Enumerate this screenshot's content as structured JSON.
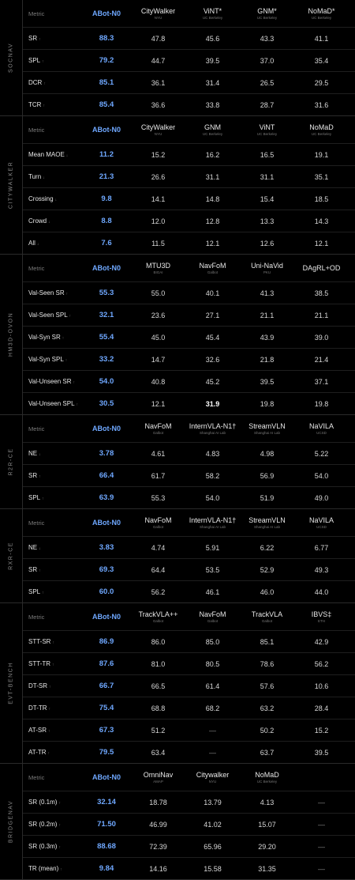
{
  "chart_data": [
    {
      "type": "table",
      "section": "SOCNAV",
      "header_label": "Metric",
      "ours": "ABot-N0",
      "baselines": [
        {
          "name": "CityWalker",
          "org": "NYU"
        },
        {
          "name": "ViNT*",
          "org": "UC Berkeley"
        },
        {
          "name": "GNM*",
          "org": "UC Berkeley"
        },
        {
          "name": "NoMaD*",
          "org": "UC Berkeley"
        }
      ],
      "rows": [
        {
          "metric": "SR",
          "arrow": "↑",
          "values": [
            "88.3",
            "47.8",
            "45.6",
            "43.3",
            "41.1"
          ]
        },
        {
          "metric": "SPL",
          "arrow": "↑",
          "values": [
            "79.2",
            "44.7",
            "39.5",
            "37.0",
            "35.4"
          ]
        },
        {
          "metric": "DCR",
          "arrow": "↑",
          "values": [
            "85.1",
            "36.1",
            "31.4",
            "26.5",
            "29.5"
          ]
        },
        {
          "metric": "TCR",
          "arrow": "↑",
          "values": [
            "85.4",
            "36.6",
            "33.8",
            "28.7",
            "31.6"
          ]
        }
      ]
    },
    {
      "type": "table",
      "section": "CITYWALKER",
      "header_label": "Metric",
      "ours": "ABot-N0",
      "baselines": [
        {
          "name": "CityWalker",
          "org": "NYU"
        },
        {
          "name": "GNM",
          "org": "UC Berkeley"
        },
        {
          "name": "ViNT",
          "org": "UC Berkeley"
        },
        {
          "name": "NoMaD",
          "org": "UC Berkeley"
        }
      ],
      "rows": [
        {
          "metric": "Mean MAOE",
          "arrow": "↓",
          "values": [
            "11.2",
            "15.2",
            "16.2",
            "16.5",
            "19.1"
          ]
        },
        {
          "metric": "Turn",
          "arrow": "↓",
          "values": [
            "21.3",
            "26.6",
            "31.1",
            "31.1",
            "35.1"
          ]
        },
        {
          "metric": "Crossing",
          "arrow": "↓",
          "values": [
            "9.8",
            "14.1",
            "14.8",
            "15.4",
            "18.5"
          ]
        },
        {
          "metric": "Crowd",
          "arrow": "↓",
          "values": [
            "8.8",
            "12.0",
            "12.8",
            "13.3",
            "14.3"
          ]
        },
        {
          "metric": "All",
          "arrow": "↓",
          "values": [
            "7.6",
            "11.5",
            "12.1",
            "12.6",
            "12.1"
          ]
        }
      ]
    },
    {
      "type": "table",
      "section": "HM3D-OVON",
      "header_label": "Metric",
      "ours": "ABot-N0",
      "baselines": [
        {
          "name": "MTU3D",
          "org": "BIGAI"
        },
        {
          "name": "NavFoM",
          "org": "Galbot"
        },
        {
          "name": "Uni-NaVid",
          "org": "PKU"
        },
        {
          "name": "DAgRL+OD",
          "org": ""
        }
      ],
      "rows": [
        {
          "metric": "Val-Seen SR",
          "arrow": "↑",
          "values": [
            "55.3",
            "55.0",
            "40.1",
            "41.3",
            "38.5"
          ]
        },
        {
          "metric": "Val-Seen SPL",
          "arrow": "↑",
          "values": [
            "32.1",
            "23.6",
            "27.1",
            "21.1",
            "21.1"
          ]
        },
        {
          "metric": "Val-Syn SR",
          "arrow": "↑",
          "values": [
            "55.4",
            "45.0",
            "45.4",
            "43.9",
            "39.0"
          ]
        },
        {
          "metric": "Val-Syn SPL",
          "arrow": "↑",
          "values": [
            "33.2",
            "14.7",
            "32.6",
            "21.8",
            "21.4"
          ]
        },
        {
          "metric": "Val-Unseen SR",
          "arrow": "↑",
          "values": [
            "54.0",
            "40.8",
            "45.2",
            "39.5",
            "37.1"
          ]
        },
        {
          "metric": "Val-Unseen SPL",
          "arrow": "↑",
          "values": [
            "30.5",
            "12.1",
            "31.9",
            "19.8",
            "19.8"
          ],
          "bold_index": 2
        }
      ]
    },
    {
      "type": "table",
      "section": "R2R-CE",
      "header_label": "Metric",
      "ours": "ABot-N0",
      "baselines": [
        {
          "name": "NavFoM",
          "org": "Galbot"
        },
        {
          "name": "InternVLA-N1†",
          "org": "Shanghai AI Lab"
        },
        {
          "name": "StreamVLN",
          "org": "Shanghai AI Lab"
        },
        {
          "name": "NaVILA",
          "org": "UCSD"
        }
      ],
      "rows": [
        {
          "metric": "NE",
          "arrow": "↓",
          "values": [
            "3.78",
            "4.61",
            "4.83",
            "4.98",
            "5.22"
          ]
        },
        {
          "metric": "SR",
          "arrow": "↑",
          "values": [
            "66.4",
            "61.7",
            "58.2",
            "56.9",
            "54.0"
          ]
        },
        {
          "metric": "SPL",
          "arrow": "↑",
          "values": [
            "63.9",
            "55.3",
            "54.0",
            "51.9",
            "49.0"
          ]
        }
      ]
    },
    {
      "type": "table",
      "section": "RXR-CE",
      "header_label": "Metric",
      "ours": "ABot-N0",
      "baselines": [
        {
          "name": "NavFoM",
          "org": "Galbot"
        },
        {
          "name": "InternVLA-N1†",
          "org": "Shanghai AI Lab"
        },
        {
          "name": "StreamVLN",
          "org": "Shanghai AI Lab"
        },
        {
          "name": "NaVILA",
          "org": "UCSD"
        }
      ],
      "rows": [
        {
          "metric": "NE",
          "arrow": "↓",
          "values": [
            "3.83",
            "4.74",
            "5.91",
            "6.22",
            "6.77"
          ]
        },
        {
          "metric": "SR",
          "arrow": "↑",
          "values": [
            "69.3",
            "64.4",
            "53.5",
            "52.9",
            "49.3"
          ]
        },
        {
          "metric": "SPL",
          "arrow": "↑",
          "values": [
            "60.0",
            "56.2",
            "46.1",
            "46.0",
            "44.0"
          ]
        }
      ]
    },
    {
      "type": "table",
      "section": "EVT-BENCH",
      "header_label": "Metric",
      "ours": "ABot-N0",
      "baselines": [
        {
          "name": "TrackVLA++",
          "org": "Galbot"
        },
        {
          "name": "NavFoM",
          "org": "Galbot"
        },
        {
          "name": "TrackVLA",
          "org": "Galbot"
        },
        {
          "name": "IBVS‡",
          "org": "ETH"
        }
      ],
      "rows": [
        {
          "metric": "STT-SR",
          "arrow": "↑",
          "values": [
            "86.9",
            "86.0",
            "85.0",
            "85.1",
            "42.9"
          ]
        },
        {
          "metric": "STT-TR",
          "arrow": "↑",
          "values": [
            "87.6",
            "81.0",
            "80.5",
            "78.6",
            "56.2"
          ]
        },
        {
          "metric": "DT-SR",
          "arrow": "↑",
          "values": [
            "66.7",
            "66.5",
            "61.4",
            "57.6",
            "10.6"
          ]
        },
        {
          "metric": "DT-TR",
          "arrow": "↑",
          "values": [
            "75.4",
            "68.8",
            "68.2",
            "63.2",
            "28.4"
          ]
        },
        {
          "metric": "AT-SR",
          "arrow": "↑",
          "values": [
            "67.3",
            "51.2",
            "—",
            "50.2",
            "15.2"
          ]
        },
        {
          "metric": "AT-TR",
          "arrow": "↑",
          "values": [
            "79.5",
            "63.4",
            "—",
            "63.7",
            "39.5"
          ]
        }
      ]
    },
    {
      "type": "table",
      "section": "BRIDGENAV",
      "header_label": "Metric",
      "ours": "ABot-N0",
      "baselines": [
        {
          "name": "OmniNav",
          "org": "AMAP"
        },
        {
          "name": "Citywalker",
          "org": "NYU"
        },
        {
          "name": "NoMaD",
          "org": "UC Berkeley"
        },
        {
          "name": "",
          "org": ""
        }
      ],
      "rows": [
        {
          "metric": "SR (0.1m)",
          "arrow": "↑",
          "values": [
            "32.14",
            "18.78",
            "13.79",
            "4.13",
            "—"
          ]
        },
        {
          "metric": "SR (0.2m)",
          "arrow": "↑",
          "values": [
            "71.50",
            "46.99",
            "41.02",
            "15.07",
            "—"
          ]
        },
        {
          "metric": "SR (0.3m)",
          "arrow": "↑",
          "values": [
            "88.68",
            "72.39",
            "65.96",
            "29.20",
            "—"
          ]
        },
        {
          "metric": "TR (mean)",
          "arrow": "↑",
          "values": [
            "9.84",
            "14.16",
            "15.58",
            "31.35",
            "—"
          ]
        }
      ]
    }
  ]
}
